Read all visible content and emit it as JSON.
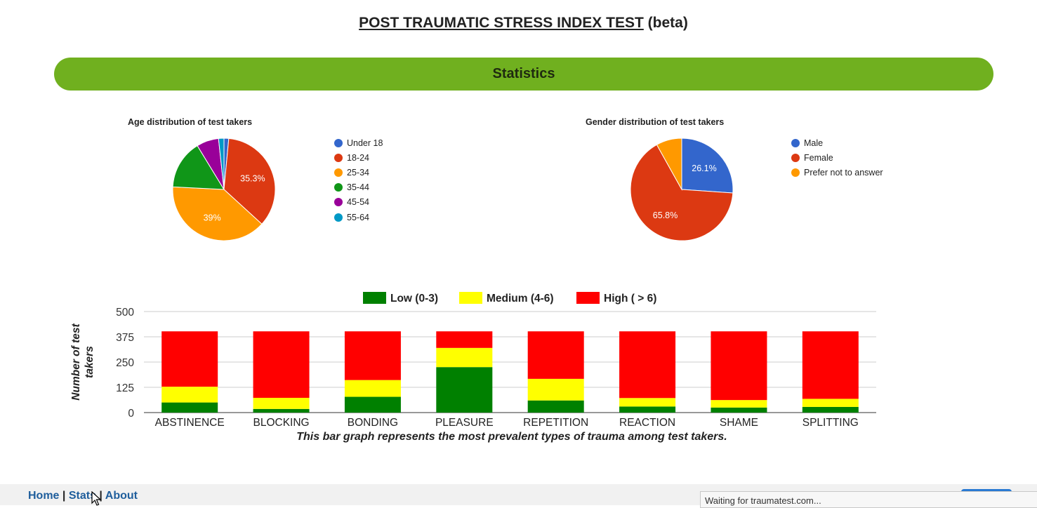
{
  "page": {
    "title_main": "POST TRAUMATIC STRESS INDEX TEST",
    "title_suffix": "(beta)",
    "section_title": "Statistics"
  },
  "footer": {
    "home": "Home",
    "stats": "Stats",
    "about": "About",
    "status_text": "Waiting for traumatest.com..."
  },
  "colors": {
    "green_header": "#70b01f",
    "link": "#1f5e9c",
    "low": "#008000",
    "medium": "#ffff00",
    "high": "#ff0000"
  },
  "chart_data": [
    {
      "type": "pie",
      "title": "Age distribution of test takers",
      "legend_position": "right",
      "labels": [
        "Under 18",
        "18-24",
        "25-34",
        "35-44",
        "45-54",
        "55-64"
      ],
      "values": [
        1.5,
        35.3,
        39.0,
        15.5,
        7.0,
        1.7
      ],
      "slice_labels": [
        "",
        "35.3%",
        "39%",
        "",
        "",
        ""
      ],
      "colors": [
        "#3366cc",
        "#dc3912",
        "#ff9900",
        "#109618",
        "#990099",
        "#0099c6"
      ]
    },
    {
      "type": "pie",
      "title": "Gender distribution of test takers",
      "legend_position": "right",
      "labels": [
        "Male",
        "Female",
        "Prefer not to answer"
      ],
      "values": [
        26.1,
        65.8,
        8.1
      ],
      "slice_labels": [
        "26.1%",
        "65.8%",
        ""
      ],
      "colors": [
        "#3366cc",
        "#dc3912",
        "#ff9900"
      ]
    },
    {
      "type": "bar",
      "stacked": true,
      "categories": [
        "ABSTINENCE",
        "BLOCKING",
        "BONDING",
        "PLEASURE",
        "REPETITION",
        "REACTION",
        "SHAME",
        "SPLITTING"
      ],
      "series": [
        {
          "name": "Low (0-3)",
          "color": "#008000",
          "values": [
            50,
            18,
            78,
            225,
            60,
            30,
            25,
            28
          ]
        },
        {
          "name": "Medium (4-6)",
          "color": "#ffff00",
          "values": [
            78,
            55,
            83,
            95,
            107,
            42,
            37,
            40
          ]
        },
        {
          "name": "High ( > 6)",
          "color": "#ff0000",
          "values": [
            274,
            329,
            241,
            82,
            235,
            330,
            340,
            334
          ]
        }
      ],
      "ylabel": "Number of test takers",
      "yticks": [
        0,
        125,
        250,
        375,
        500
      ],
      "ylim": [
        0,
        500
      ],
      "legend_position": "top",
      "grid": true,
      "caption": "This bar graph represents the most prevalent types of trauma among test takers."
    }
  ]
}
